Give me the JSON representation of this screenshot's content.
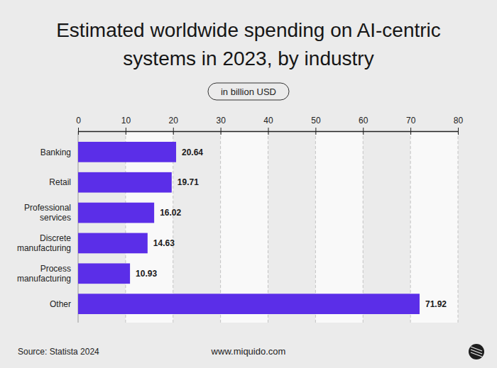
{
  "chart_data": {
    "type": "bar",
    "orientation": "horizontal",
    "title": "Estimated worldwide spending on AI-centric systems in 2023, by industry",
    "subtitle": "in billion USD",
    "categories": [
      "Banking",
      "Retail",
      "Professional services",
      "Discrete manufacturing",
      "Process manufacturing",
      "Other"
    ],
    "values": [
      20.64,
      19.71,
      16.02,
      14.63,
      10.93,
      71.92
    ],
    "color": "#5b2ee8",
    "xlim": [
      0,
      80
    ],
    "xticks": [
      0,
      10,
      20,
      30,
      40,
      50,
      60,
      70,
      80
    ],
    "grid": true,
    "data_labels": true,
    "annotations": [
      "Source: Statista 2024",
      "www.miquido.com"
    ]
  }
}
